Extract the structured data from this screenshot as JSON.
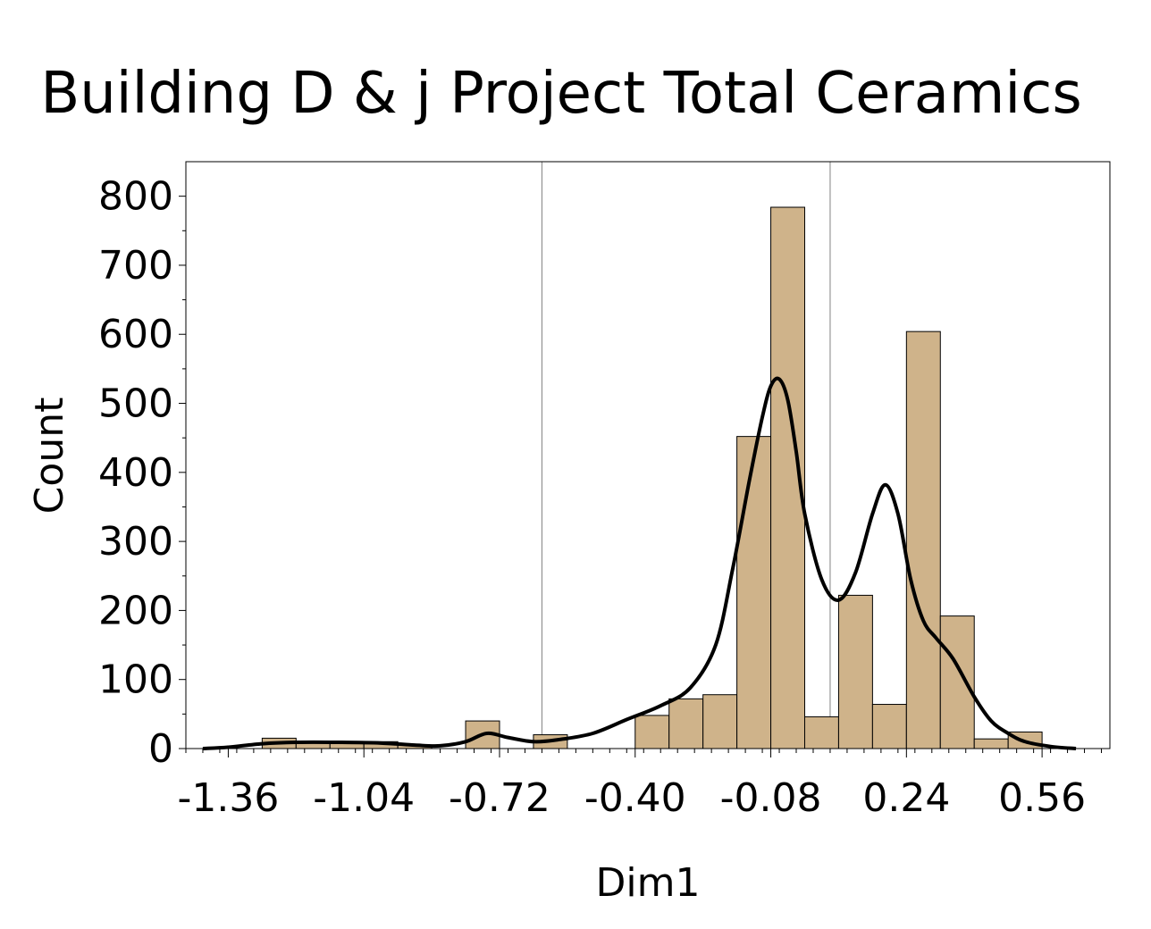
{
  "chart_data": {
    "type": "bar",
    "title": "Building D & j Project Total Ceramics",
    "xlabel": "Dim1",
    "ylabel": "Count",
    "xlim": [
      -1.46,
      0.72
    ],
    "ylim": [
      0,
      850
    ],
    "x_ticks": [
      -1.36,
      -1.04,
      -0.72,
      -0.4,
      -0.08,
      0.24,
      0.56
    ],
    "x_tick_labels": [
      "-1.36",
      "-1.04",
      "-0.72",
      "-0.40",
      "-0.08",
      "0.24",
      "0.56"
    ],
    "y_ticks": [
      0,
      100,
      200,
      300,
      400,
      500,
      600,
      700,
      800
    ],
    "bin_width": 0.08,
    "bins": [
      {
        "x0": -1.28,
        "count": 15
      },
      {
        "x0": -1.2,
        "count": 10
      },
      {
        "x0": -1.12,
        "count": 10
      },
      {
        "x0": -1.04,
        "count": 10
      },
      {
        "x0": -0.96,
        "count": 5
      },
      {
        "x0": -0.8,
        "count": 40
      },
      {
        "x0": -0.64,
        "count": 20
      },
      {
        "x0": -0.4,
        "count": 48
      },
      {
        "x0": -0.32,
        "count": 72
      },
      {
        "x0": -0.24,
        "count": 78
      },
      {
        "x0": -0.16,
        "count": 452
      },
      {
        "x0": -0.08,
        "count": 784
      },
      {
        "x0": 0.0,
        "count": 46
      },
      {
        "x0": 0.08,
        "count": 222
      },
      {
        "x0": 0.16,
        "count": 64
      },
      {
        "x0": 0.24,
        "count": 604
      },
      {
        "x0": 0.32,
        "count": 192
      },
      {
        "x0": 0.4,
        "count": 14
      },
      {
        "x0": 0.48,
        "count": 24
      }
    ],
    "density_curve": [
      [
        -1.42,
        0
      ],
      [
        -1.36,
        2
      ],
      [
        -1.28,
        7
      ],
      [
        -1.2,
        9
      ],
      [
        -1.1,
        9
      ],
      [
        -1.0,
        8
      ],
      [
        -0.92,
        5
      ],
      [
        -0.86,
        4
      ],
      [
        -0.8,
        10
      ],
      [
        -0.75,
        22
      ],
      [
        -0.7,
        16
      ],
      [
        -0.64,
        10
      ],
      [
        -0.58,
        13
      ],
      [
        -0.5,
        22
      ],
      [
        -0.42,
        42
      ],
      [
        -0.34,
        62
      ],
      [
        -0.27,
        88
      ],
      [
        -0.21,
        150
      ],
      [
        -0.17,
        260
      ],
      [
        -0.13,
        390
      ],
      [
        -0.1,
        480
      ],
      [
        -0.08,
        525
      ],
      [
        -0.06,
        535
      ],
      [
        -0.04,
        505
      ],
      [
        -0.02,
        430
      ],
      [
        0.0,
        340
      ],
      [
        0.04,
        245
      ],
      [
        0.08,
        215
      ],
      [
        0.12,
        255
      ],
      [
        0.16,
        340
      ],
      [
        0.19,
        382
      ],
      [
        0.22,
        340
      ],
      [
        0.25,
        245
      ],
      [
        0.28,
        185
      ],
      [
        0.31,
        160
      ],
      [
        0.35,
        130
      ],
      [
        0.4,
        75
      ],
      [
        0.44,
        40
      ],
      [
        0.48,
        22
      ],
      [
        0.52,
        10
      ],
      [
        0.58,
        3
      ],
      [
        0.64,
        0
      ]
    ],
    "reference_lines_x": [
      -0.62,
      0.06
    ],
    "bar_color": "#cfb38a",
    "bar_edge_color": "#000000",
    "curve_color": "#000000"
  }
}
